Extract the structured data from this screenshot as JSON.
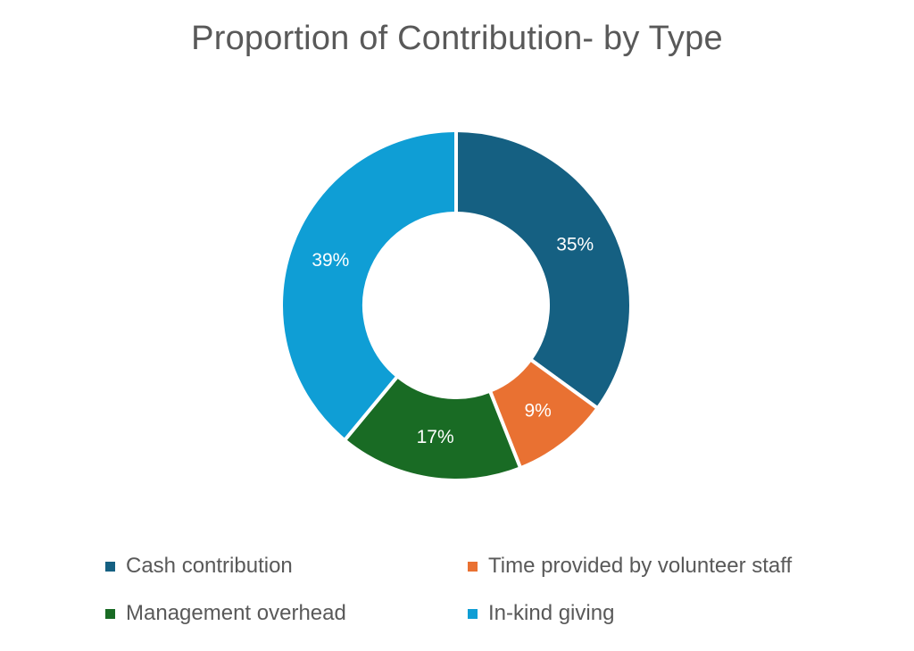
{
  "chart_data": {
    "type": "pie",
    "variant": "donut",
    "title": "Proportion of Contribution- by Type",
    "slices": [
      {
        "name": "Cash contribution",
        "value": 35,
        "label": "35%",
        "color": "#156082"
      },
      {
        "name": "Time provided by volunteer staff",
        "value": 9,
        "label": "9%",
        "color": "#E97132"
      },
      {
        "name": "Management overhead",
        "value": 17,
        "label": "17%",
        "color": "#196B24"
      },
      {
        "name": "In-kind giving",
        "value": 39,
        "label": "39%",
        "color": "#0F9ED5"
      }
    ],
    "legend_position": "bottom"
  }
}
